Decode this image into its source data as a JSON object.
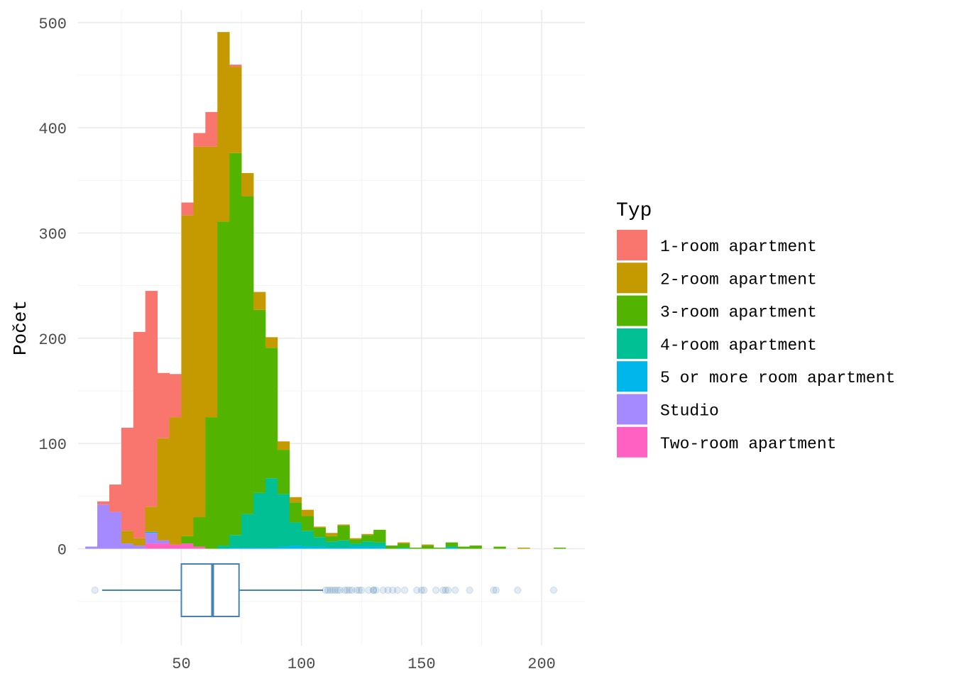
{
  "chart_data": {
    "type": "bar",
    "subtype": "stacked-histogram-with-boxplot",
    "title": "",
    "xlabel": "",
    "ylabel": "Počet",
    "bin_width": 5,
    "bin_starts": [
      10,
      15,
      20,
      25,
      30,
      35,
      40,
      45,
      50,
      55,
      60,
      65,
      70,
      75,
      80,
      85,
      90,
      95,
      100,
      105,
      110,
      115,
      120,
      125,
      130,
      135,
      140,
      145,
      150,
      155,
      160,
      165,
      170,
      175,
      180,
      185,
      190,
      195,
      200,
      205
    ],
    "xlim": [
      7,
      218
    ],
    "ylim": [
      -92,
      512
    ],
    "x_ticks": [
      50,
      100,
      150,
      200
    ],
    "y_ticks": [
      0,
      100,
      200,
      300,
      400,
      500
    ],
    "x_tick_labels": [
      "50",
      "100",
      "150",
      "200"
    ],
    "y_tick_labels": [
      "0",
      "100",
      "200",
      "300",
      "400",
      "500"
    ],
    "grid": true,
    "legend": {
      "title": "Typ",
      "position": "right"
    },
    "series": [
      {
        "name": "Two-room apartment",
        "color": "#FF61C3",
        "values": [
          0,
          0,
          0,
          0,
          0,
          5,
          5,
          4,
          5,
          2,
          0,
          0,
          0,
          0,
          0,
          0,
          0,
          0,
          0,
          0,
          0,
          0,
          0,
          0,
          0,
          0,
          0,
          0,
          0,
          0,
          0,
          0,
          0,
          0,
          0,
          0,
          0,
          0,
          0,
          0
        ]
      },
      {
        "name": "Studio",
        "color": "#A58AFF",
        "values": [
          2,
          42,
          35,
          5,
          3,
          10,
          3,
          0,
          0,
          0,
          0,
          0,
          0,
          0,
          0,
          0,
          0,
          0,
          0,
          0,
          0,
          0,
          0,
          0,
          0,
          0,
          0,
          0,
          0,
          0,
          0,
          0,
          0,
          0,
          0,
          0,
          0,
          0,
          0,
          0
        ]
      },
      {
        "name": "5 or more room apartment",
        "color": "#00B6EB",
        "values": [
          0,
          0,
          0,
          0,
          0,
          1,
          0,
          0,
          0,
          0,
          0,
          0,
          1,
          1,
          1,
          1,
          2,
          3,
          2,
          2,
          1,
          1,
          2,
          2,
          2,
          0,
          0,
          0,
          0,
          0,
          1,
          0,
          0,
          0,
          0,
          0,
          0,
          0,
          0,
          0
        ]
      },
      {
        "name": "4-room apartment",
        "color": "#00C094",
        "values": [
          0,
          0,
          0,
          0,
          0,
          0,
          0,
          0,
          0,
          0,
          0,
          3,
          12,
          32,
          52,
          66,
          50,
          22,
          15,
          9,
          6,
          7,
          3,
          5,
          4,
          0,
          1,
          0,
          0,
          0,
          1,
          0,
          0,
          0,
          0,
          0,
          0,
          0,
          0,
          0
        ]
      },
      {
        "name": "3-room apartment",
        "color": "#53B400",
        "values": [
          0,
          0,
          0,
          0,
          0,
          0,
          0,
          0,
          7,
          28,
          125,
          308,
          363,
          302,
          174,
          124,
          42,
          19,
          14,
          9,
          5,
          14,
          4,
          6,
          12,
          3,
          4,
          1,
          3,
          1,
          4,
          2,
          3,
          0,
          2,
          0,
          0,
          0,
          0,
          1
        ]
      },
      {
        "name": "2-room apartment",
        "color": "#C49A00",
        "values": [
          0,
          0,
          0,
          12,
          7,
          24,
          97,
          121,
          305,
          352,
          257,
          180,
          82,
          22,
          17,
          10,
          8,
          5,
          6,
          1,
          3,
          1,
          1,
          1,
          0,
          0,
          1,
          0,
          1,
          0,
          0,
          0,
          0,
          0,
          0,
          0,
          1,
          0,
          0,
          0
        ]
      },
      {
        "name": "1-room apartment",
        "color": "#F8766D",
        "values": [
          0,
          3,
          26,
          98,
          196,
          205,
          62,
          41,
          12,
          13,
          33,
          0,
          2,
          0,
          0,
          0,
          0,
          0,
          0,
          0,
          0,
          0,
          0,
          0,
          0,
          0,
          0,
          0,
          0,
          0,
          0,
          0,
          0,
          0,
          0,
          0,
          0,
          0,
          0,
          0
        ]
      }
    ],
    "boxplot": {
      "color": "#4682B4",
      "lower_whisker": 17,
      "q1": 50,
      "median": 63,
      "q3": 74,
      "upper_whisker": 109,
      "outliers": [
        14,
        110,
        111,
        112,
        113,
        114,
        115,
        116,
        118,
        119,
        120,
        121,
        123,
        124,
        125,
        128,
        130,
        130,
        131,
        134,
        136,
        138,
        140,
        143,
        148,
        150,
        151,
        156,
        159,
        160,
        161,
        164,
        170,
        180,
        181,
        190,
        205
      ]
    }
  },
  "legend_order": [
    {
      "name": "1-room apartment",
      "color": "#F8766D"
    },
    {
      "name": "2-room apartment",
      "color": "#C49A00"
    },
    {
      "name": "3-room apartment",
      "color": "#53B400"
    },
    {
      "name": "4-room apartment",
      "color": "#00C094"
    },
    {
      "name": "5 or more room apartment",
      "color": "#00B6EB"
    },
    {
      "name": "Studio",
      "color": "#A58AFF"
    },
    {
      "name": "Two-room apartment",
      "color": "#FF61C3"
    }
  ]
}
